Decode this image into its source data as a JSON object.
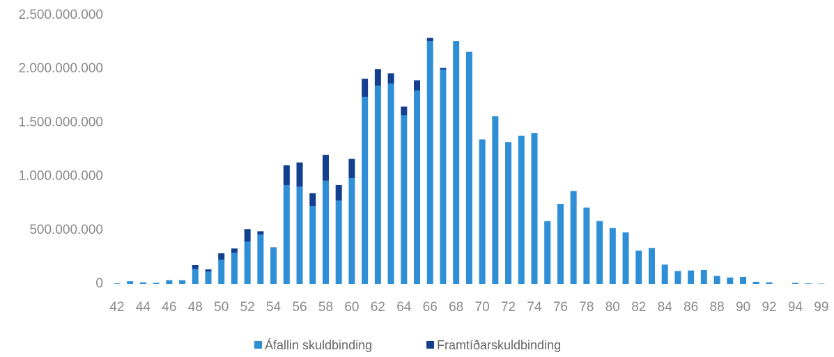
{
  "chart_data": {
    "type": "bar",
    "stacked": true,
    "categories": [
      42,
      null,
      44,
      null,
      46,
      null,
      48,
      null,
      50,
      null,
      52,
      null,
      54,
      null,
      56,
      null,
      58,
      null,
      60,
      null,
      62,
      null,
      64,
      null,
      66,
      null,
      68,
      null,
      70,
      null,
      72,
      null,
      74,
      null,
      76,
      null,
      78,
      null,
      80,
      null,
      82,
      null,
      84,
      null,
      86,
      null,
      88,
      null,
      90,
      null,
      92,
      null,
      94,
      null,
      99
    ],
    "series": [
      {
        "name": "Áfallin skuldbinding",
        "color": "#2f8fd6",
        "values": [
          5,
          25,
          15,
          10,
          35,
          35,
          140,
          115,
          225,
          290,
          395,
          460,
          335,
          920,
          905,
          725,
          960,
          775,
          985,
          1740,
          1845,
          1865,
          1570,
          1800,
          2260,
          1995,
          2260,
          2160,
          1345,
          1560,
          1320,
          1380,
          1405,
          585,
          745,
          865,
          710,
          585,
          520,
          480,
          310,
          335,
          180,
          120,
          125,
          130,
          75,
          60,
          65,
          20,
          15,
          0,
          10,
          5,
          3
        ]
      },
      {
        "name": "Framtíðarskuldbinding",
        "color": "#123f8e",
        "values": [
          0,
          0,
          0,
          0,
          0,
          0,
          35,
          20,
          60,
          40,
          115,
          30,
          5,
          185,
          225,
          120,
          240,
          145,
          180,
          170,
          155,
          95,
          80,
          95,
          30,
          15,
          0,
          0,
          0,
          0,
          0,
          0,
          0,
          0,
          0,
          0,
          0,
          0,
          0,
          0,
          0,
          0,
          0,
          0,
          0,
          0,
          0,
          0,
          0,
          0,
          0,
          0,
          0,
          0,
          0
        ]
      }
    ],
    "ylim": [
      0,
      2500
    ],
    "yticks": [
      0,
      {
        "value": 500,
        "label": "500.000.000"
      },
      {
        "value": 1000,
        "label": "1.000.000.000"
      },
      {
        "value": 1500,
        "label": "1.500.000.000"
      },
      {
        "value": 2000,
        "label": "2.000.000.000"
      },
      {
        "value": 2500,
        "label": "2.500.000.000"
      }
    ],
    "legend": "bottom"
  }
}
